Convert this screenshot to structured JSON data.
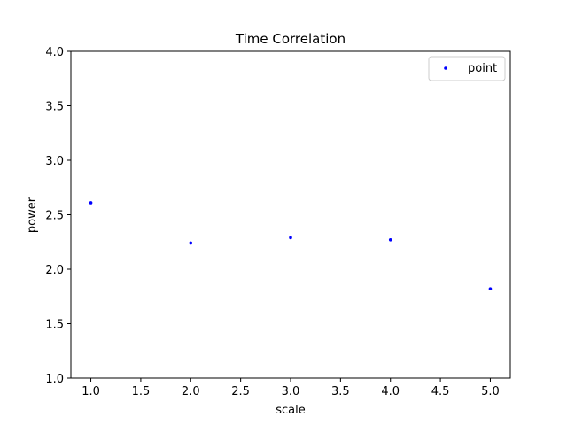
{
  "chart_data": {
    "type": "scatter",
    "title": "Time Correlation",
    "xlabel": "scale",
    "ylabel": "power",
    "xlim": [
      0.8,
      5.2
    ],
    "ylim": [
      1.0,
      4.0
    ],
    "xticks": [
      "1.0",
      "1.5",
      "2.0",
      "2.5",
      "3.0",
      "3.5",
      "4.0",
      "4.5",
      "5.0"
    ],
    "yticks": [
      "1.0",
      "1.5",
      "2.0",
      "2.5",
      "3.0",
      "3.5",
      "4.0"
    ],
    "grid": false,
    "legend_position": "top-right",
    "series": [
      {
        "name": "point",
        "color": "#0000ff",
        "x": [
          1.0,
          2.0,
          3.0,
          4.0,
          5.0
        ],
        "y": [
          2.61,
          2.24,
          2.29,
          2.27,
          1.82
        ]
      }
    ]
  }
}
